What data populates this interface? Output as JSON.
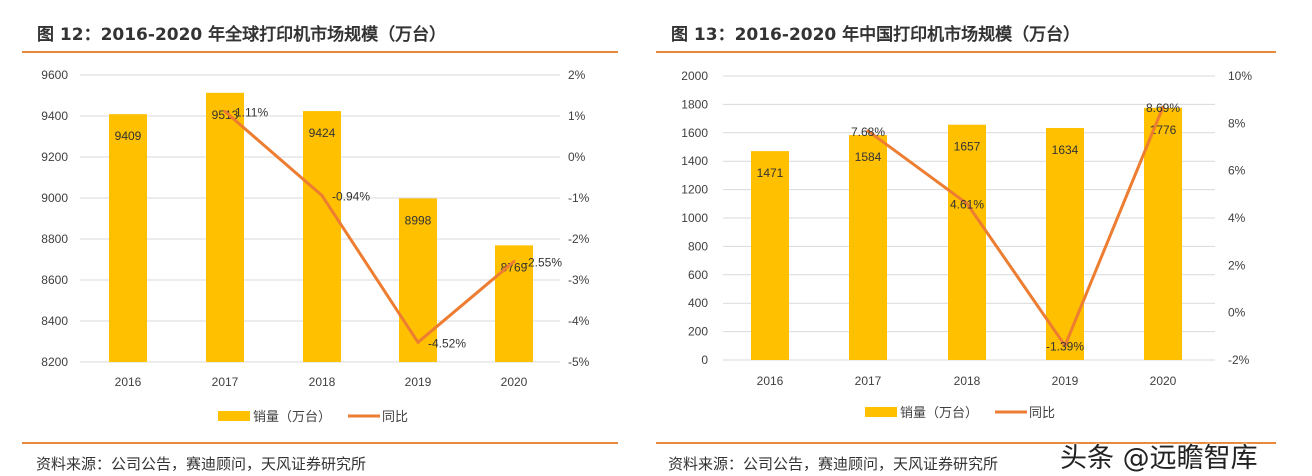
{
  "chart_data": [
    {
      "type": "bar+line",
      "title": "图 12：2016-2020 年全球打印机市场规模（万台）",
      "categories": [
        "2016",
        "2017",
        "2018",
        "2019",
        "2020"
      ],
      "series": [
        {
          "name": "销量（万台）",
          "type": "bar",
          "axis": "left",
          "values": [
            9409,
            9513,
            9424,
            8998,
            8769
          ],
          "color": "#ffc000"
        },
        {
          "name": "同比",
          "type": "line",
          "axis": "right",
          "values": [
            null,
            1.11,
            -0.94,
            -4.52,
            -2.55
          ],
          "color": "#ed7d31"
        }
      ],
      "bar_labels": [
        "9409",
        "9513",
        "9424",
        "8998",
        "8769"
      ],
      "line_labels": [
        "",
        "1.11%",
        "-0.94%",
        "-4.52%",
        "-2.55%"
      ],
      "y_left": {
        "lim": [
          8200,
          9600
        ],
        "ticks": [
          "8200",
          "8400",
          "8600",
          "8800",
          "9000",
          "9200",
          "9400",
          "9600"
        ]
      },
      "y_right": {
        "lim": [
          -5,
          2
        ],
        "ticks": [
          "-5%",
          "-4%",
          "-3%",
          "-2%",
          "-1%",
          "0%",
          "1%",
          "2%"
        ]
      },
      "grid": true,
      "legend": "bottom",
      "source": "资料来源：公司公告，赛迪顾问，天风证券研究所"
    },
    {
      "type": "bar+line",
      "title": "图 13：2016-2020 年中国打印机市场规模（万台）",
      "categories": [
        "2016",
        "2017",
        "2018",
        "2019",
        "2020"
      ],
      "series": [
        {
          "name": "销量（万台）",
          "type": "bar",
          "axis": "left",
          "values": [
            1471,
            1584,
            1657,
            1634,
            1776
          ],
          "color": "#ffc000"
        },
        {
          "name": "同比",
          "type": "line",
          "axis": "right",
          "values": [
            null,
            7.68,
            4.61,
            -1.39,
            8.69
          ],
          "color": "#ed7d31"
        }
      ],
      "bar_labels": [
        "1471",
        "1584",
        "1657",
        "1634",
        "1776"
      ],
      "line_labels": [
        "",
        "7.68%",
        "4.61%",
        "-1.39%",
        "8.69%"
      ],
      "y_left": {
        "lim": [
          0,
          2000
        ],
        "ticks": [
          "0",
          "200",
          "400",
          "600",
          "800",
          "1000",
          "1200",
          "1400",
          "1600",
          "1800",
          "2000"
        ]
      },
      "y_right": {
        "lim": [
          -2,
          10
        ],
        "ticks": [
          "-2%",
          "0%",
          "2%",
          "4%",
          "6%",
          "8%",
          "10%"
        ]
      },
      "grid": true,
      "legend": "bottom",
      "source": "资料来源：公司公告，赛迪顾问，天风证券研究所"
    }
  ],
  "watermark": "头条 @远瞻智库"
}
